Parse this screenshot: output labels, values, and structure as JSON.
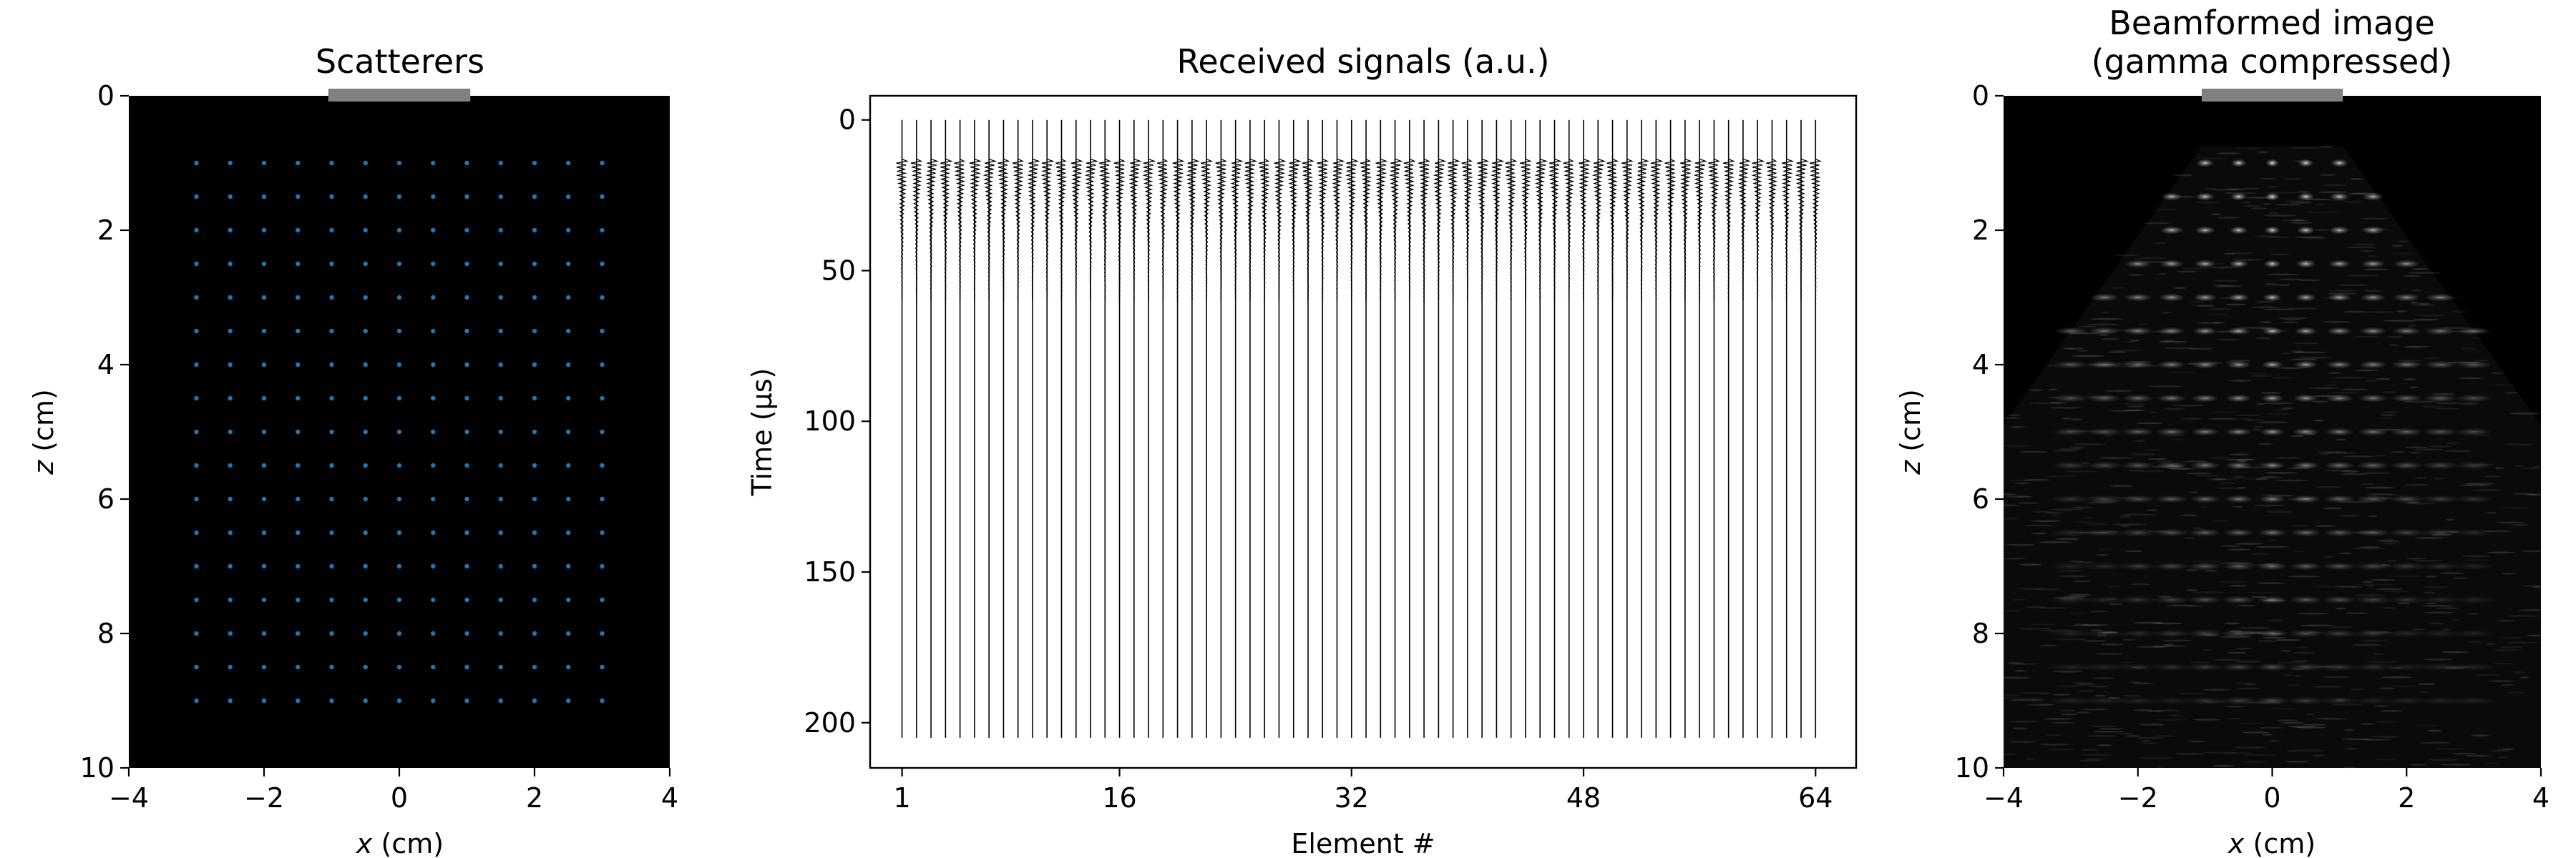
{
  "colors": {
    "background": "#ffffff",
    "panel_black": "#000000",
    "scatterer_dot": "#1f77b4",
    "probe_bar": "#808080",
    "trace": "#000000",
    "speckle": "#cfcfcf"
  },
  "chart_data": [
    {
      "type": "scatter",
      "title": "Scatterers",
      "xlabel_var": "x",
      "xlabel_unit": " (cm)",
      "ylabel_var": "z",
      "ylabel_unit": " (cm)",
      "xlim": [
        -4,
        4
      ],
      "ylim": [
        0,
        10
      ],
      "y_inverted": true,
      "x_ticks": [
        -4,
        -2,
        0,
        2,
        4
      ],
      "x_tick_labels": [
        "−4",
        "−2",
        "0",
        "2",
        "4"
      ],
      "y_ticks": [
        0,
        2,
        4,
        6,
        8,
        10
      ],
      "y_tick_labels": [
        "0",
        "2",
        "4",
        "6",
        "8",
        "10"
      ],
      "background": "black",
      "probe_span": [
        -1.05,
        1.05
      ],
      "grid_x": [
        -3,
        -2.5,
        -2,
        -1.5,
        -1,
        -0.5,
        0,
        0.5,
        1,
        1.5,
        2,
        2.5,
        3
      ],
      "grid_z": [
        1,
        1.5,
        2,
        2.5,
        3,
        3.5,
        4,
        4.5,
        5,
        5.5,
        6,
        6.5,
        7,
        7.5,
        8,
        8.5,
        9
      ]
    },
    {
      "type": "line",
      "title": "Received signals (a.u.)",
      "xlabel": "Element #",
      "ylabel": "Time (µs)",
      "xlim": [
        -1.2,
        66.8
      ],
      "ylim": [
        -8,
        215
      ],
      "y_inverted": true,
      "x_ticks": [
        1,
        16,
        32,
        48,
        64
      ],
      "x_tick_labels": [
        "1",
        "16",
        "32",
        "48",
        "64"
      ],
      "y_ticks": [
        0,
        50,
        100,
        150,
        200
      ],
      "y_tick_labels": [
        "0",
        "50",
        "100",
        "150",
        "200"
      ],
      "elements": 64,
      "time_range": [
        0,
        205
      ],
      "echo_window": [
        13,
        60
      ]
    },
    {
      "type": "heatmap",
      "title": "Beamformed image",
      "subtitle": "(gamma compressed)",
      "xlabel_var": "x",
      "xlabel_unit": " (cm)",
      "ylabel_var": "z",
      "ylabel_unit": " (cm)",
      "xlim": [
        -4,
        4
      ],
      "ylim": [
        0,
        10
      ],
      "y_inverted": true,
      "x_ticks": [
        -4,
        -2,
        0,
        2,
        4
      ],
      "x_tick_labels": [
        "−4",
        "−2",
        "0",
        "2",
        "4"
      ],
      "y_ticks": [
        0,
        2,
        4,
        6,
        8,
        10
      ],
      "y_tick_labels": [
        "0",
        "2",
        "4",
        "6",
        "8",
        "10"
      ],
      "background": "black",
      "probe_span": [
        -1.05,
        1.05
      ],
      "sector_apex_z": 0.75,
      "sector_top_half_width": 1.05,
      "sector_edge_z": 4.9,
      "scatter_rows_z": [
        1,
        1.5,
        2,
        2.5,
        3,
        3.5,
        4,
        4.5,
        5,
        5.5,
        6,
        6.5,
        7,
        7.5,
        8,
        8.5,
        9
      ],
      "scatter_cols_x": [
        -3,
        -2.5,
        -2,
        -1.5,
        -1,
        -0.5,
        0,
        0.5,
        1,
        1.5,
        2,
        2.5,
        3
      ]
    }
  ]
}
